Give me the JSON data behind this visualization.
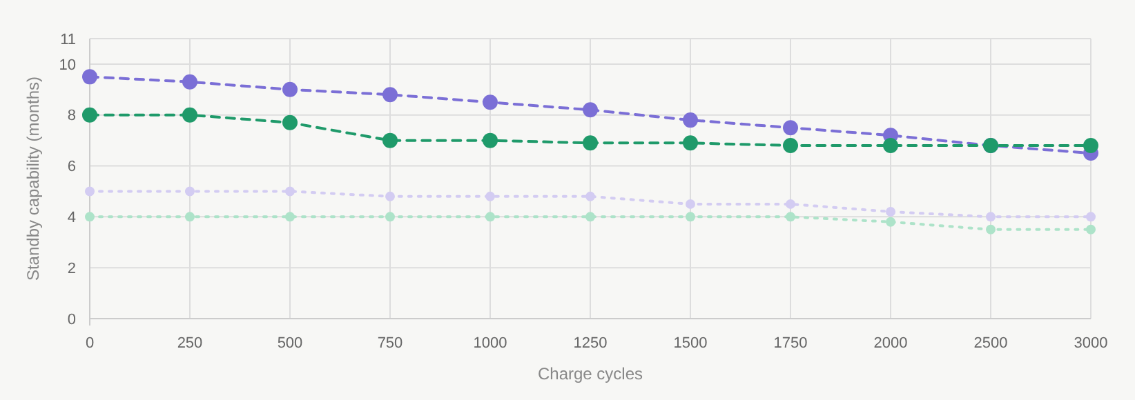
{
  "chart_data": {
    "type": "line",
    "xlabel": "Charge cycles",
    "ylabel": "Standby capability (months)",
    "categories": [
      "0",
      "250",
      "500",
      "750",
      "1000",
      "1250",
      "1500",
      "1750",
      "2000",
      "2500",
      "3000"
    ],
    "ylim": [
      0,
      11
    ],
    "yticks": [
      0,
      2,
      4,
      6,
      8,
      10,
      11
    ],
    "grid": true,
    "marker": "circle",
    "series": [
      {
        "color": "#7b6fd6",
        "line_style": "dashed",
        "values": [
          9.5,
          9.3,
          9.0,
          8.8,
          8.5,
          8.2,
          7.8,
          7.5,
          7.2,
          6.8,
          6.5
        ]
      },
      {
        "color": "#1f9a6a",
        "line_style": "dashed",
        "values": [
          8.0,
          8.0,
          7.7,
          7.0,
          7.0,
          6.9,
          6.9,
          6.8,
          6.8,
          6.8,
          6.8
        ]
      },
      {
        "color": "#d3ccf2",
        "line_style": "dotted",
        "values": [
          5.0,
          5.0,
          5.0,
          4.8,
          4.8,
          4.8,
          4.5,
          4.5,
          4.2,
          4.0,
          4.0
        ]
      },
      {
        "color": "#ade3c9",
        "line_style": "dotted",
        "values": [
          4.0,
          4.0,
          4.0,
          4.0,
          4.0,
          4.0,
          4.0,
          4.0,
          3.8,
          3.5,
          3.5
        ]
      }
    ]
  }
}
